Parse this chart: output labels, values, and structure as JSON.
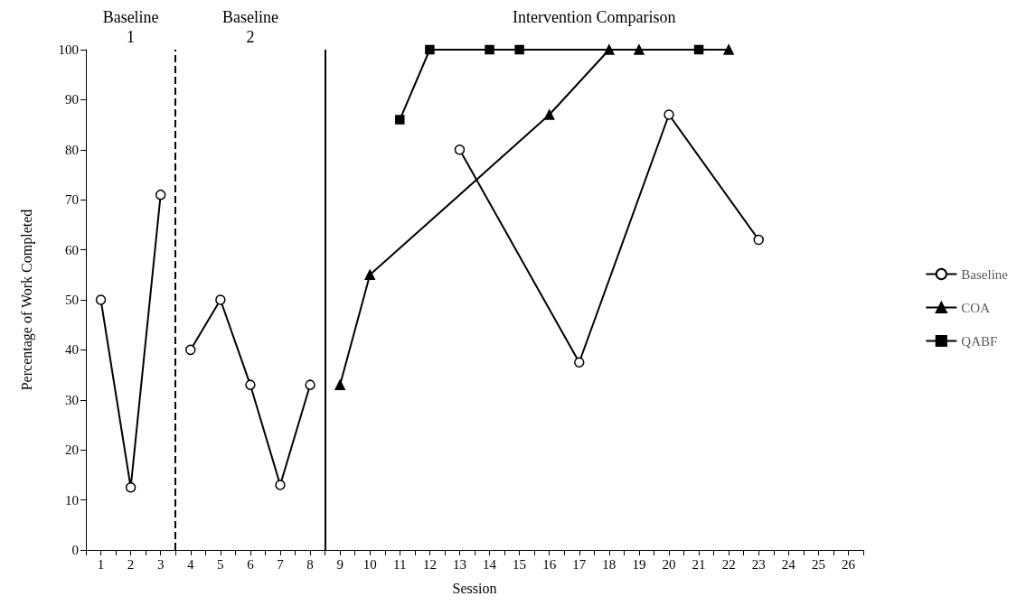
{
  "chart_data": {
    "type": "line",
    "xlabel": "Session",
    "ylabel": "Percentage of Work Completed",
    "annotations": [
      "Baseline\n1",
      "Baseline\n2",
      "Intervention Comparison"
    ],
    "xlim": [
      0.5,
      26.5
    ],
    "xticks": [
      1,
      2,
      3,
      4,
      5,
      6,
      7,
      8,
      9,
      10,
      11,
      12,
      13,
      14,
      15,
      16,
      17,
      18,
      19,
      20,
      21,
      22,
      23,
      24,
      25,
      26,
      {
        "value": 0.5,
        "label": null
      },
      {
        "value": 1.5,
        "label": null
      },
      {
        "value": 2.5,
        "label": null
      },
      {
        "value": 3.5,
        "label": null
      },
      {
        "value": 4.5,
        "label": null
      },
      {
        "value": 5.5,
        "label": null
      },
      {
        "value": 6.5,
        "label": null
      },
      {
        "value": 7.5,
        "label": null
      },
      {
        "value": 8.5,
        "label": null
      },
      {
        "value": 9.5,
        "label": null
      },
      {
        "value": 10.5,
        "label": null
      },
      {
        "value": 11.5,
        "label": null
      },
      {
        "value": 12.5,
        "label": null
      },
      {
        "value": 13.5,
        "label": null
      },
      {
        "value": 14.5,
        "label": null
      },
      {
        "value": 15.5,
        "label": null
      },
      {
        "value": 16.5,
        "label": null
      },
      {
        "value": 17.5,
        "label": null
      },
      {
        "value": 18.5,
        "label": null
      },
      {
        "value": 19.5,
        "label": null
      },
      {
        "value": 20.5,
        "label": null
      },
      {
        "value": 21.5,
        "label": null
      },
      {
        "value": 22.5,
        "label": null
      },
      {
        "value": 23.5,
        "label": null
      },
      {
        "value": 24.5,
        "label": null
      },
      {
        "value": 25.5,
        "label": null
      },
      {
        "value": 26.5,
        "label": null
      }
    ],
    "ylim": [
      0,
      100
    ],
    "yticks": [
      0,
      10,
      20,
      30,
      40,
      50,
      60,
      70,
      80,
      90,
      100
    ],
    "grid": false,
    "legend": "right",
    "ref_lines": [
      {
        "axis": "x",
        "value": 3.5,
        "line_style": "dashed",
        "color": "#000000"
      },
      {
        "axis": "x",
        "value": 8.5,
        "line_style": "solid",
        "color": "#000000"
      }
    ],
    "series": [
      {
        "name": "Baseline",
        "color": "#000000",
        "marker": "circle",
        "x": [
          1,
          2,
          3,
          3.5,
          4,
          5,
          6,
          7,
          8,
          8.5,
          13,
          17,
          20,
          23
        ],
        "values": [
          50,
          12.5,
          71,
          null,
          40,
          50,
          33,
          13,
          33,
          null,
          80,
          37.5,
          87,
          62
        ]
      },
      {
        "name": "COA",
        "color": "#000000",
        "marker": "triangle",
        "x": [
          9,
          10,
          16,
          18,
          19,
          22
        ],
        "values": [
          33,
          55,
          87,
          100,
          100,
          100
        ]
      },
      {
        "name": "QABF",
        "color": "#000000",
        "marker": "square",
        "x": [
          11,
          12,
          14,
          15,
          21
        ],
        "values": [
          86,
          100,
          100,
          100,
          100
        ]
      }
    ]
  }
}
